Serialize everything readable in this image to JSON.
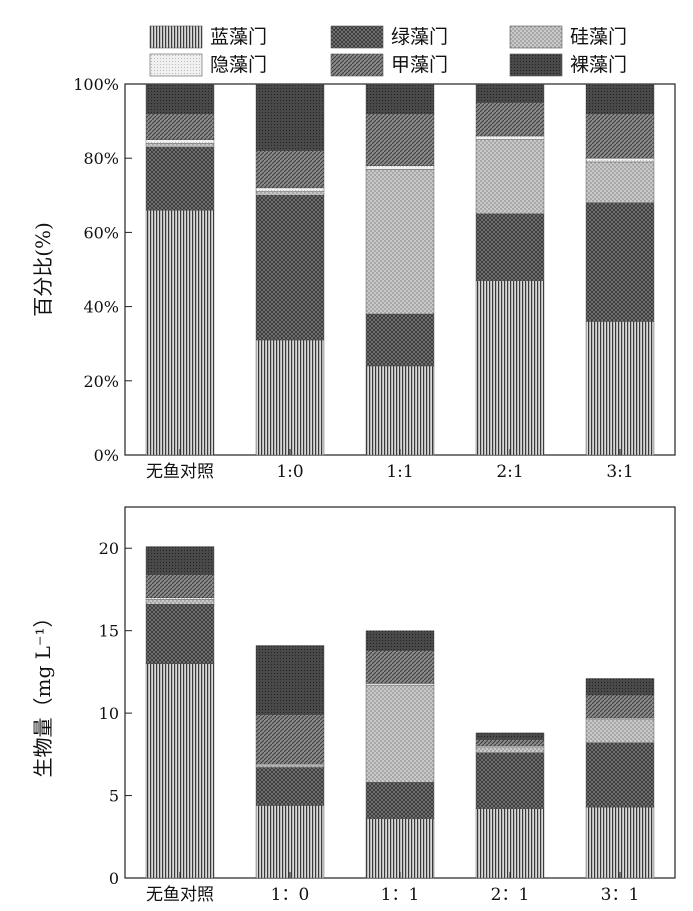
{
  "legend": {
    "entries": [
      {
        "name": "蓝藻门",
        "pattern": "p-vert-dense"
      },
      {
        "name": "绿藻门",
        "pattern": "p-cross"
      },
      {
        "name": "硅藻门",
        "pattern": "p-dots-light"
      },
      {
        "name": "隐藻门",
        "pattern": "p-stipple"
      },
      {
        "name": "甲藻门",
        "pattern": "p-diag"
      },
      {
        "name": "裸藻门",
        "pattern": "p-dark"
      }
    ]
  },
  "chart_data": [
    {
      "type": "bar",
      "stacked": true,
      "title": "",
      "xlabel": "",
      "ylabel": "百分比(%)",
      "ylim": [
        0,
        100
      ],
      "yticks": [
        "0%",
        "20%",
        "40%",
        "60%",
        "80%",
        "100%"
      ],
      "categories": [
        "无鱼对照",
        "1:0",
        "1:1",
        "2:1",
        "3:1"
      ],
      "series": [
        {
          "name": "蓝藻门",
          "values": [
            66,
            31,
            24,
            47,
            36
          ]
        },
        {
          "name": "绿藻门",
          "values": [
            17,
            39,
            14,
            18,
            32
          ]
        },
        {
          "name": "硅藻门",
          "values": [
            1,
            1,
            39,
            20,
            11
          ]
        },
        {
          "name": "隐藻门",
          "values": [
            1,
            1,
            1,
            1,
            1
          ]
        },
        {
          "name": "甲藻门",
          "values": [
            7,
            10,
            14,
            9,
            12
          ]
        },
        {
          "name": "裸藻门",
          "values": [
            8,
            18,
            8,
            5,
            8
          ]
        }
      ],
      "grid": false,
      "legend_position": "top"
    },
    {
      "type": "bar",
      "stacked": true,
      "title": "",
      "xlabel": "",
      "ylabel": "生物量（mg L⁻¹）",
      "ylim": [
        0,
        22.5
      ],
      "yticks": [
        "0",
        "5",
        "10",
        "15",
        "20"
      ],
      "categories": [
        "无鱼对照",
        "1：0",
        "1：1",
        "2：1",
        "3：1"
      ],
      "series": [
        {
          "name": "蓝藻门",
          "values": [
            13.0,
            4.4,
            3.6,
            4.2,
            4.3
          ]
        },
        {
          "name": "绿藻门",
          "values": [
            3.6,
            2.3,
            2.2,
            3.4,
            3.9
          ]
        },
        {
          "name": "硅藻门",
          "values": [
            0.3,
            0.1,
            5.9,
            0.3,
            1.4
          ]
        },
        {
          "name": "隐藻门",
          "values": [
            0.1,
            0.1,
            0.1,
            0.1,
            0.1
          ]
        },
        {
          "name": "甲藻门",
          "values": [
            1.4,
            3.0,
            2.0,
            0.4,
            1.4
          ]
        },
        {
          "name": "裸藻门",
          "values": [
            1.7,
            4.2,
            1.2,
            0.4,
            1.0
          ]
        }
      ],
      "grid": false,
      "legend_position": "none"
    }
  ]
}
